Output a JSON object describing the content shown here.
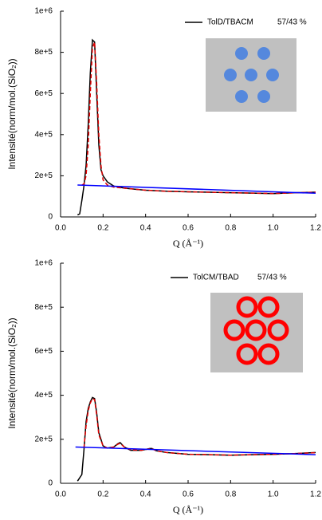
{
  "chart_data": [
    {
      "type": "line",
      "y_label": "Intensité(norm/mol.(SiO₂))",
      "x_label": "Q (Å⁻¹)",
      "legend_note": "57/43 %",
      "xlim": [
        0,
        1.2
      ],
      "xticks": [
        {
          "value": 0,
          "label": "0.0"
        },
        0.2,
        0.4,
        0.6,
        0.8,
        {
          "value": 1,
          "label": "1.0"
        },
        1.2
      ],
      "ylim": [
        0,
        1000000
      ],
      "yticks": [
        0,
        {
          "value": 200000,
          "label": "2e+5"
        },
        {
          "value": 400000,
          "label": "4e+5"
        },
        {
          "value": 600000,
          "label": "6e+5"
        },
        {
          "value": 800000,
          "label": "8e+5"
        },
        {
          "value": 1000000,
          "label": "1e+6"
        }
      ],
      "series": [
        {
          "name": "TolD/TBACM",
          "color": "#000000",
          "x": [
            0.08,
            0.09,
            0.1,
            0.11,
            0.12,
            0.13,
            0.14,
            0.15,
            0.16,
            0.17,
            0.18,
            0.19,
            0.2,
            0.22,
            0.25,
            0.3,
            0.35,
            0.4,
            0.5,
            0.6,
            0.7,
            0.8,
            0.9,
            1.0,
            1.1,
            1.2
          ],
          "values": [
            10000,
            15000,
            80000,
            150000,
            250000,
            450000,
            700000,
            860000,
            850000,
            600000,
            350000,
            230000,
            200000,
            170000,
            150000,
            140000,
            135000,
            130000,
            125000,
            122000,
            120000,
            118000,
            116000,
            113000,
            118000,
            120000
          ]
        },
        {
          "color": "#e00000",
          "dashed": true,
          "x": [
            0.08,
            0.09,
            0.1,
            0.11,
            0.12,
            0.13,
            0.14,
            0.15,
            0.16,
            0.17,
            0.18,
            0.19,
            0.2,
            0.22,
            0.25,
            0.3,
            0.35,
            0.4,
            0.5,
            0.6,
            0.7,
            0.8,
            0.9,
            1.0,
            1.1,
            1.2
          ],
          "values": [
            null,
            null,
            155000,
            160000,
            200000,
            350000,
            600000,
            820000,
            850000,
            650000,
            400000,
            250000,
            180000,
            155000,
            145000,
            140000,
            135000,
            130000,
            125000,
            122000,
            120000,
            118000,
            116000,
            114000,
            117000,
            120000
          ]
        },
        {
          "color": "#0000ff",
          "x": [
            0.08,
            1.2
          ],
          "values": [
            155000,
            115000
          ]
        }
      ]
    },
    {
      "type": "line",
      "y_label": "Intensité(norm/mol.(SiO₂))",
      "x_label": "Q (Å⁻¹)",
      "legend_note": "57/43 %",
      "xlim": [
        0,
        1.2
      ],
      "xticks": [
        {
          "value": 0,
          "label": "0.0"
        },
        0.2,
        0.4,
        0.6,
        0.8,
        {
          "value": 1,
          "label": "1.0"
        },
        1.2
      ],
      "ylim": [
        0,
        1000000
      ],
      "yticks": [
        0,
        {
          "value": 200000,
          "label": "2e+5"
        },
        {
          "value": 400000,
          "label": "4e+5"
        },
        {
          "value": 600000,
          "label": "6e+5"
        },
        {
          "value": 800000,
          "label": "8e+5"
        },
        {
          "value": 1000000,
          "label": "1e+6"
        }
      ],
      "series": [
        {
          "name": "TolCM/TBAD",
          "color": "#000000",
          "x": [
            0.08,
            0.1,
            0.11,
            0.12,
            0.13,
            0.14,
            0.15,
            0.16,
            0.17,
            0.18,
            0.2,
            0.22,
            0.25,
            0.27,
            0.28,
            0.3,
            0.33,
            0.38,
            0.42,
            0.43,
            0.45,
            0.5,
            0.6,
            0.7,
            0.8,
            0.9,
            1.0,
            1.1,
            1.2
          ],
          "values": [
            10000,
            40000,
            150000,
            280000,
            340000,
            370000,
            390000,
            385000,
            320000,
            230000,
            170000,
            160000,
            165000,
            180000,
            185000,
            165000,
            150000,
            150000,
            158000,
            158000,
            148000,
            140000,
            132000,
            130000,
            128000,
            130000,
            132000,
            135000,
            140000
          ]
        },
        {
          "color": "#e00000",
          "dashed": true,
          "x": [
            0.08,
            0.1,
            0.11,
            0.12,
            0.13,
            0.14,
            0.15,
            0.16,
            0.17,
            0.18,
            0.2,
            0.22,
            0.25,
            0.27,
            0.28,
            0.3,
            0.33,
            0.38,
            0.42,
            0.43,
            0.45,
            0.5,
            0.6,
            0.7,
            0.8,
            0.9,
            1.0,
            1.1,
            1.2
          ],
          "values": [
            null,
            null,
            160000,
            260000,
            330000,
            365000,
            385000,
            380000,
            310000,
            220000,
            170000,
            160000,
            165000,
            178000,
            182000,
            165000,
            152000,
            150000,
            157000,
            157000,
            148000,
            140000,
            132000,
            130000,
            128000,
            130000,
            132000,
            135000,
            139000
          ]
        },
        {
          "color": "#0000ff",
          "x": [
            0.07,
            1.2
          ],
          "values": [
            165000,
            130000
          ]
        }
      ]
    }
  ]
}
